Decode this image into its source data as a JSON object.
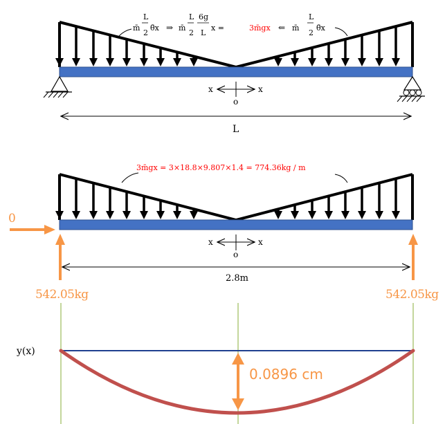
{
  "colors": {
    "beam": "#4472c4",
    "beam_edge": "#2f528f",
    "load": "#000000",
    "highlight_red": "#ff0000",
    "reaction_orange": "#f79646",
    "deflection_curve": "#c0504d",
    "baseline": "#1f3f8f",
    "guide_line": "#9bbb59"
  },
  "diagram1": {
    "formula_left": "m̄(L/2)θ̄x",
    "formula_left_m": "m̄",
    "formula_left_frac_num": "L",
    "formula_left_frac_den": "2",
    "formula_left_tail": "θ̄x",
    "implies": "⇒",
    "formula_mid_m": "m̄",
    "formula_mid_frac1_num": "L",
    "formula_mid_frac1_den": "2",
    "formula_mid_frac2_num": "6g",
    "formula_mid_frac2_den": "L",
    "formula_mid_tail": "x =",
    "formula_mid_result": "3m̄gx",
    "implied_by": "⇐",
    "formula_right_m": "m̄",
    "formula_right_frac_num": "L",
    "formula_right_frac_den": "2",
    "formula_right_tail": "θ̄x",
    "axis_left": "x",
    "axis_right": "x",
    "origin": "o",
    "span_label": "L"
  },
  "diagram2": {
    "load_formula": "3m̄gx = 3×18.8×9.807×1.4 = 774.36kg / m",
    "axial_force": "0",
    "axis_left": "x",
    "axis_right": "x",
    "origin": "o",
    "span_label": "2.8m",
    "reaction_left": "542.05kg",
    "reaction_right": "542.05kg"
  },
  "diagram3": {
    "function_label": "y(x)",
    "max_deflection": "0.0896 cm"
  }
}
